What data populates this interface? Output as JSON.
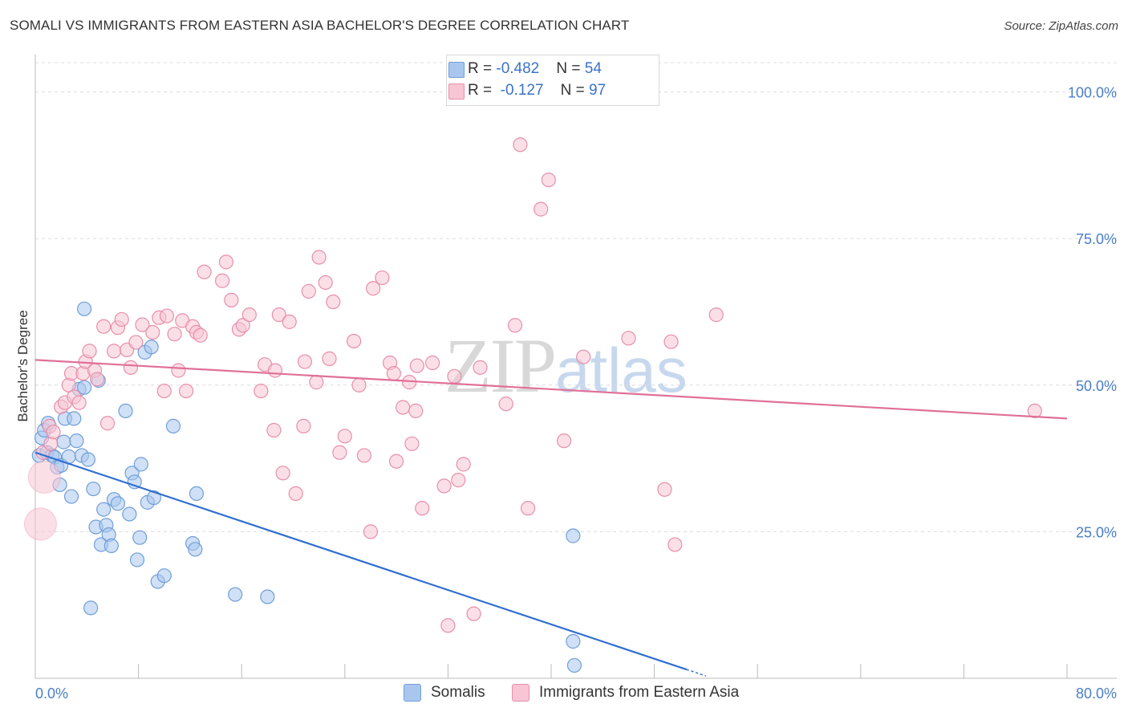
{
  "header": {
    "title": "SOMALI VS IMMIGRANTS FROM EASTERN ASIA BACHELOR'S DEGREE CORRELATION CHART",
    "source": "Source: ZipAtlas.com"
  },
  "watermark": {
    "zip": "ZIP",
    "atlas": "atlas"
  },
  "legend": {
    "rows": [
      {
        "r_label": "R = ",
        "r_value": "-0.482",
        "n_label": "N = ",
        "n_value": "54",
        "color": "#a9c7ee",
        "border": "#6f9fd8"
      },
      {
        "r_label": "R = ",
        "r_value": " -0.127",
        "n_label": "N = ",
        "n_value": "97",
        "color": "#f7c5d3",
        "border": "#e78fab"
      }
    ]
  },
  "bottom_legend": [
    {
      "label": "Somalis",
      "color": "#a9c7ee",
      "border": "#6f9fd8"
    },
    {
      "label": "Immigrants from Eastern Asia",
      "color": "#f7c5d3",
      "border": "#e78fab"
    }
  ],
  "chart_data": {
    "type": "scatter",
    "xlabel": "",
    "ylabel": "Bachelor's Degree",
    "xlim": [
      0,
      80
    ],
    "ylim": [
      0,
      105
    ],
    "x_tick_labels": [
      {
        "value": 0,
        "label": "0.0%"
      },
      {
        "value": 80,
        "label": "80.0%"
      }
    ],
    "y_tick_labels": [
      {
        "value": 25,
        "label": "25.0%"
      },
      {
        "value": 50,
        "label": "50.0%"
      },
      {
        "value": 75,
        "label": "75.0%"
      },
      {
        "value": 100,
        "label": "100.0%"
      }
    ],
    "x_minor_ticks": [
      0,
      8,
      16,
      24,
      32,
      40,
      48,
      56,
      64,
      72,
      80
    ],
    "grid": true,
    "series": [
      {
        "name": "Somalis",
        "color": "#a9c7ee",
        "stroke": "#6f9fd8",
        "trend": {
          "x0": 0,
          "y0": 38.5,
          "x1": 50.5,
          "y1": 1.5,
          "color": "#2f6fd0",
          "dash_to_x": 52
        },
        "points": [
          [
            0.3,
            38
          ],
          [
            0.5,
            41
          ],
          [
            0.7,
            42.3
          ],
          [
            0.9,
            38.5
          ],
          [
            1.0,
            43.5
          ],
          [
            1.3,
            38
          ],
          [
            1.5,
            37.7
          ],
          [
            1.7,
            36
          ],
          [
            1.9,
            33
          ],
          [
            2.0,
            36.3
          ],
          [
            2.2,
            40.3
          ],
          [
            2.3,
            44.3
          ],
          [
            2.6,
            37.8
          ],
          [
            2.8,
            31
          ],
          [
            3.0,
            44.3
          ],
          [
            3.2,
            40.5
          ],
          [
            3.4,
            49.3
          ],
          [
            3.6,
            38
          ],
          [
            3.8,
            49.6
          ],
          [
            3.8,
            63
          ],
          [
            4.1,
            37.3
          ],
          [
            4.3,
            12
          ],
          [
            4.5,
            32.3
          ],
          [
            4.7,
            25.8
          ],
          [
            4.9,
            50.8
          ],
          [
            5.1,
            22.8
          ],
          [
            5.3,
            28.8
          ],
          [
            5.5,
            26.1
          ],
          [
            5.7,
            24.5
          ],
          [
            5.9,
            22.6
          ],
          [
            6.1,
            30.5
          ],
          [
            6.4,
            29.8
          ],
          [
            7.0,
            45.6
          ],
          [
            7.3,
            28
          ],
          [
            7.5,
            35
          ],
          [
            7.7,
            33.5
          ],
          [
            7.9,
            20.2
          ],
          [
            8.1,
            24
          ],
          [
            8.2,
            36.5
          ],
          [
            8.5,
            55.6
          ],
          [
            8.7,
            30
          ],
          [
            9.0,
            56.5
          ],
          [
            9.2,
            30.8
          ],
          [
            9.5,
            16.5
          ],
          [
            10.0,
            17.5
          ],
          [
            10.7,
            43
          ],
          [
            12.2,
            23
          ],
          [
            12.4,
            22
          ],
          [
            12.5,
            31.5
          ],
          [
            15.5,
            14.3
          ],
          [
            18.0,
            13.9
          ],
          [
            41.7,
            6.3
          ],
          [
            41.8,
            2.2
          ],
          [
            41.7,
            24.3
          ]
        ],
        "big_points": []
      },
      {
        "name": "Immigrants from Eastern Asia",
        "color": "#f7c5d3",
        "stroke": "#e78fab",
        "trend": {
          "x0": 0,
          "y0": 54.3,
          "x1": 80,
          "y1": 44.3,
          "color": "#e07098"
        },
        "points": [
          [
            0.6,
            38.5
          ],
          [
            1.1,
            43
          ],
          [
            1.2,
            40
          ],
          [
            1.4,
            42
          ],
          [
            2.0,
            46.3
          ],
          [
            2.3,
            47
          ],
          [
            2.6,
            50
          ],
          [
            2.8,
            52
          ],
          [
            3.0,
            48
          ],
          [
            3.4,
            47
          ],
          [
            3.7,
            52
          ],
          [
            3.9,
            54
          ],
          [
            4.2,
            55.8
          ],
          [
            4.6,
            52.5
          ],
          [
            4.8,
            51
          ],
          [
            5.3,
            60
          ],
          [
            5.6,
            43.5
          ],
          [
            6.1,
            55.8
          ],
          [
            6.4,
            59.8
          ],
          [
            6.7,
            61.2
          ],
          [
            7.1,
            56
          ],
          [
            7.4,
            53
          ],
          [
            7.8,
            57.3
          ],
          [
            8.3,
            60.3
          ],
          [
            9.1,
            59
          ],
          [
            9.6,
            61.5
          ],
          [
            10.0,
            49
          ],
          [
            10.2,
            61.8
          ],
          [
            10.8,
            58.7
          ],
          [
            11.1,
            52.5
          ],
          [
            11.4,
            61
          ],
          [
            11.7,
            49
          ],
          [
            12.2,
            60
          ],
          [
            12.5,
            59
          ],
          [
            12.8,
            58.5
          ],
          [
            13.1,
            69.3
          ],
          [
            14.5,
            67.8
          ],
          [
            14.8,
            71
          ],
          [
            15.2,
            64.5
          ],
          [
            15.8,
            59.5
          ],
          [
            16.1,
            60.2
          ],
          [
            16.6,
            62
          ],
          [
            17.5,
            49
          ],
          [
            17.8,
            53.5
          ],
          [
            18.5,
            42.3
          ],
          [
            18.6,
            52.5
          ],
          [
            18.9,
            62
          ],
          [
            19.2,
            35
          ],
          [
            19.7,
            60.8
          ],
          [
            20.2,
            31.5
          ],
          [
            20.8,
            43
          ],
          [
            20.9,
            54
          ],
          [
            21.2,
            66
          ],
          [
            21.8,
            50.5
          ],
          [
            22.0,
            71.8
          ],
          [
            22.5,
            67.5
          ],
          [
            22.8,
            54.5
          ],
          [
            23.1,
            64.2
          ],
          [
            23.6,
            38.5
          ],
          [
            24.0,
            41.3
          ],
          [
            24.7,
            57.5
          ],
          [
            25.1,
            50
          ],
          [
            25.5,
            38
          ],
          [
            26.0,
            25
          ],
          [
            26.2,
            66.5
          ],
          [
            26.9,
            68.3
          ],
          [
            27.5,
            53.8
          ],
          [
            27.8,
            52
          ],
          [
            28.0,
            37
          ],
          [
            28.5,
            46.2
          ],
          [
            29.2,
            40
          ],
          [
            29.5,
            45.6
          ],
          [
            29.6,
            53.3
          ],
          [
            30.0,
            29
          ],
          [
            30.8,
            53.8
          ],
          [
            31.7,
            32.8
          ],
          [
            32.0,
            9
          ],
          [
            32.5,
            51.5
          ],
          [
            32.8,
            33.8
          ],
          [
            33.2,
            36.5
          ],
          [
            34.0,
            11
          ],
          [
            34.5,
            53
          ],
          [
            36.5,
            46.8
          ],
          [
            37.2,
            60.2
          ],
          [
            37.6,
            91
          ],
          [
            38.2,
            29
          ],
          [
            39.2,
            80
          ],
          [
            39.8,
            85
          ],
          [
            41.0,
            40.5
          ],
          [
            42.5,
            54.8
          ],
          [
            46.0,
            58
          ],
          [
            48.8,
            32.2
          ],
          [
            49.3,
            57.4
          ],
          [
            49.6,
            22.8
          ],
          [
            52.8,
            62
          ],
          [
            77.5,
            45.6
          ],
          [
            29.0,
            50.5
          ]
        ],
        "big_points": [
          [
            0.4,
            26.3
          ],
          [
            0.7,
            34.3
          ]
        ]
      }
    ]
  }
}
